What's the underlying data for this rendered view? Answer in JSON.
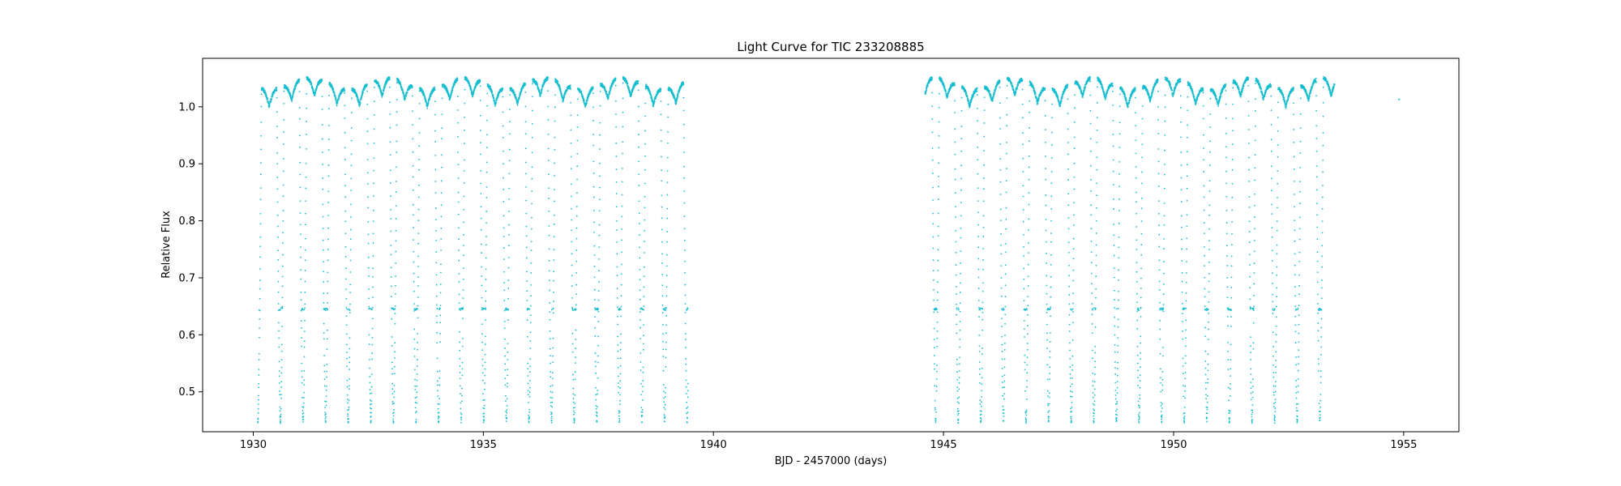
{
  "chart_data": {
    "type": "scatter",
    "title": "Light Curve for TIC 233208885",
    "xlabel": "BJD - 2457000 (days)",
    "ylabel": "Relative Flux",
    "xlim": [
      1928.9,
      1956.2
    ],
    "ylim": [
      0.43,
      1.085
    ],
    "x_ticks": [
      1930,
      1935,
      1940,
      1945,
      1950,
      1955
    ],
    "y_ticks": [
      0.5,
      0.6,
      0.7,
      0.8,
      0.9,
      1.0
    ],
    "x_tick_labels": [
      "1930",
      "1935",
      "1940",
      "1945",
      "1950",
      "1955"
    ],
    "y_tick_labels": [
      "0.5",
      "0.6",
      "0.7",
      "0.8",
      "0.9",
      "1.0"
    ],
    "marker_color": "#17becf",
    "grid": false,
    "legend": "none",
    "segments": [
      {
        "x_start": 1930.1,
        "x_end": 1939.45
      },
      {
        "x_start": 1944.6,
        "x_end": 1953.5
      }
    ],
    "approx_period_days": 0.491,
    "eclipse_min_flux": 0.445,
    "eclipse_shelf_flux": 0.645,
    "max_flux_range": [
      1.03,
      1.05
    ],
    "isolated_points": [
      {
        "x": 1954.9,
        "y": 1.013
      }
    ]
  }
}
